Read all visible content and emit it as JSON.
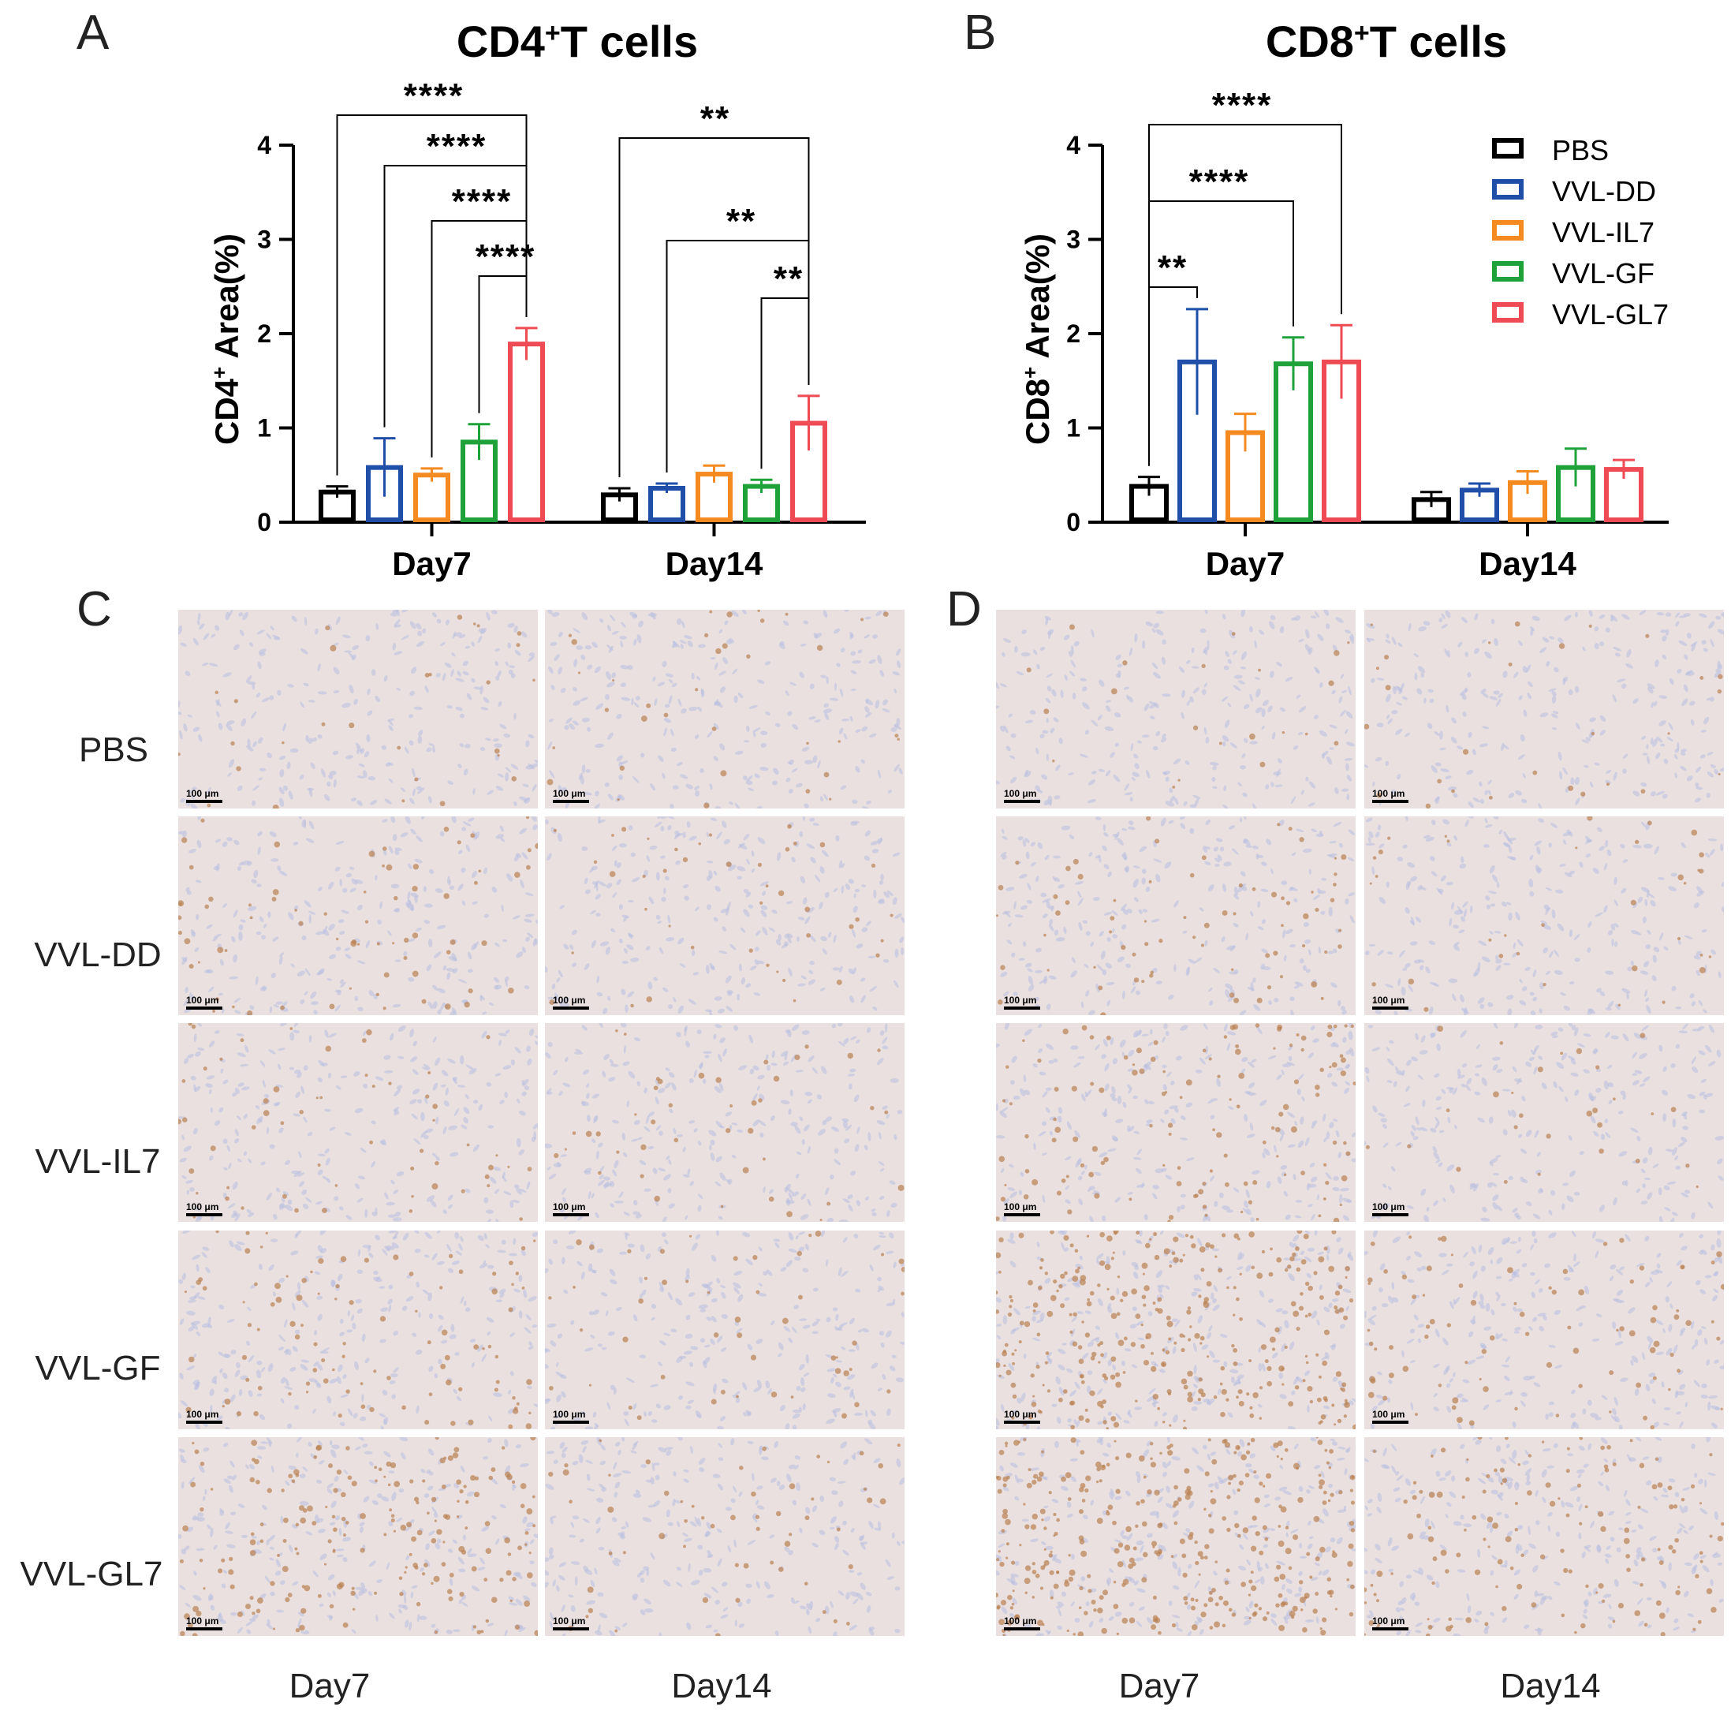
{
  "figure": {
    "panel_letters": [
      "A",
      "B",
      "C",
      "D"
    ],
    "row_labels": [
      "PBS",
      "VVL-DD",
      "VVL-IL7",
      "VVL-GF",
      "VVL-GL7"
    ],
    "column_labels": [
      "Day7",
      "Day14"
    ],
    "scale_bar_text": "100 μm"
  },
  "legend": {
    "entries": [
      {
        "name": "PBS",
        "color": "#000000"
      },
      {
        "name": "VVL-DD",
        "color": "#1f4fa8"
      },
      {
        "name": "VVL-IL7",
        "color": "#f58a20"
      },
      {
        "name": "VVL-GF",
        "color": "#1fa23a"
      },
      {
        "name": "VVL-GL7",
        "color": "#ef4b55"
      }
    ]
  },
  "chart_data": [
    {
      "type": "bar",
      "title_main": "CD4",
      "title_sup": "+",
      "title_rest": "T cells",
      "ylabel_main": "CD4",
      "ylabel_sup": "+",
      "ylabel_rest": " Area(%)",
      "categories": [
        "Day7",
        "Day14"
      ],
      "yticks": [
        "0",
        "1",
        "2",
        "3",
        "4"
      ],
      "ylim": [
        0,
        4
      ],
      "series": [
        {
          "name": "PBS",
          "color": "#000000",
          "values": [
            0.32,
            0.29
          ],
          "errors": [
            0.06,
            0.07
          ]
        },
        {
          "name": "VVL-DD",
          "color": "#1f4fa8",
          "values": [
            0.58,
            0.36
          ],
          "errors": [
            0.31,
            0.05
          ]
        },
        {
          "name": "VVL-IL7",
          "color": "#f58a20",
          "values": [
            0.5,
            0.51
          ],
          "errors": [
            0.07,
            0.09
          ]
        },
        {
          "name": "VVL-GF",
          "color": "#1fa23a",
          "values": [
            0.85,
            0.38
          ],
          "errors": [
            0.19,
            0.07
          ]
        },
        {
          "name": "VVL-GL7",
          "color": "#ef4b55",
          "values": [
            1.89,
            1.05
          ],
          "errors": [
            0.17,
            0.29
          ]
        }
      ],
      "significance": [
        {
          "category": 0,
          "from": 0,
          "to": 4,
          "label": "****"
        },
        {
          "category": 0,
          "from": 1,
          "to": 4,
          "label": "****"
        },
        {
          "category": 0,
          "from": 2,
          "to": 4,
          "label": "****"
        },
        {
          "category": 0,
          "from": 3,
          "to": 4,
          "label": "****"
        },
        {
          "category": 1,
          "from": 0,
          "to": 4,
          "label": "**"
        },
        {
          "category": 1,
          "from": 1,
          "to": 4,
          "label": "**"
        },
        {
          "category": 1,
          "from": 3,
          "to": 4,
          "label": "**"
        }
      ]
    },
    {
      "type": "bar",
      "title_main": "CD8",
      "title_sup": "+",
      "title_rest": "T cells",
      "ylabel_main": "CD8",
      "ylabel_sup": "+",
      "ylabel_rest": " Area(%)",
      "categories": [
        "Day7",
        "Day14"
      ],
      "yticks": [
        "0",
        "1",
        "2",
        "3",
        "4"
      ],
      "ylim": [
        0,
        4
      ],
      "series": [
        {
          "name": "PBS",
          "color": "#000000",
          "values": [
            0.38,
            0.24
          ],
          "errors": [
            0.1,
            0.08
          ]
        },
        {
          "name": "VVL-DD",
          "color": "#1f4fa8",
          "values": [
            1.7,
            0.34
          ],
          "errors": [
            0.56,
            0.07
          ]
        },
        {
          "name": "VVL-IL7",
          "color": "#f58a20",
          "values": [
            0.95,
            0.42
          ],
          "errors": [
            0.2,
            0.12
          ]
        },
        {
          "name": "VVL-GF",
          "color": "#1fa23a",
          "values": [
            1.68,
            0.58
          ],
          "errors": [
            0.28,
            0.2
          ]
        },
        {
          "name": "VVL-GL7",
          "color": "#ef4b55",
          "values": [
            1.7,
            0.56
          ],
          "errors": [
            0.39,
            0.1
          ]
        }
      ],
      "significance": [
        {
          "category": 0,
          "from": 0,
          "to": 4,
          "label": "****"
        },
        {
          "category": 0,
          "from": 0,
          "to": 3,
          "label": "****"
        },
        {
          "category": 0,
          "from": 0,
          "to": 1,
          "label": "**"
        }
      ]
    }
  ],
  "micrographs": {
    "panels": [
      {
        "tint": [
          "#b9bfe0",
          "#b98050"
        ],
        "brown_density": [
          [
            0.04,
            0.05
          ],
          [
            0.1,
            0.06
          ],
          [
            0.08,
            0.06
          ],
          [
            0.14,
            0.07
          ],
          [
            0.28,
            0.08
          ]
        ]
      },
      {
        "tint": [
          "#b9bfe0",
          "#b98050"
        ],
        "brown_density": [
          [
            0.03,
            0.04
          ],
          [
            0.1,
            0.05
          ],
          [
            0.18,
            0.04
          ],
          [
            0.45,
            0.12
          ],
          [
            0.5,
            0.2
          ]
        ]
      }
    ]
  }
}
